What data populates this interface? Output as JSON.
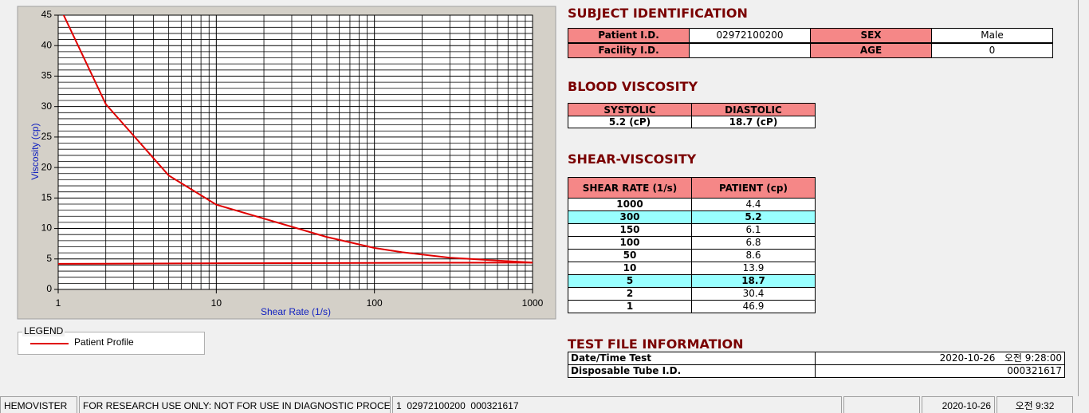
{
  "chart_data": {
    "type": "line",
    "xlabel": "Shear Rate (1/s)",
    "ylabel": "Viscosity (cp)",
    "xscale": "log",
    "xlim": [
      1,
      1000
    ],
    "ylim": [
      0,
      45
    ],
    "xticks": [
      1,
      10,
      100,
      1000
    ],
    "yticks": [
      0,
      5,
      10,
      15,
      20,
      25,
      30,
      35,
      40,
      45
    ],
    "x_minor_ticks": [
      2,
      3,
      4,
      5,
      6,
      7,
      8,
      9,
      20,
      30,
      40,
      50,
      60,
      70,
      80,
      90,
      200,
      300,
      400,
      500,
      600,
      700,
      800,
      900
    ],
    "y_minor_ticks": [
      1,
      2,
      3,
      4,
      6,
      7,
      8,
      9,
      11,
      12,
      13,
      14,
      16,
      17,
      18,
      19,
      21,
      22,
      23,
      24,
      26,
      27,
      28,
      29,
      31,
      32,
      33,
      34,
      36,
      37,
      38,
      39,
      41,
      42,
      43,
      44
    ],
    "grid": true,
    "series": [
      {
        "name": "Patient Profile",
        "color": "#e00000",
        "x": [
          1,
          2,
          5,
          10,
          50,
          100,
          150,
          300,
          1000
        ],
        "values": [
          46.9,
          30.4,
          18.7,
          13.9,
          8.6,
          6.8,
          6.1,
          5.2,
          4.4
        ]
      },
      {
        "color": "#e00000",
        "x": [
          1,
          12,
          1000
        ],
        "values": [
          4.2,
          4.3,
          4.4
        ]
      }
    ]
  },
  "legend": {
    "title": "LEGEND"
  },
  "subject": {
    "title": "SUBJECT IDENTIFICATION",
    "fields": [
      {
        "label": "Patient I.D.",
        "value": "02972100200"
      },
      {
        "label": "SEX",
        "value": "Male"
      },
      {
        "label": "Facility I.D."
      },
      {
        "label": "AGE",
        "value": 0
      }
    ]
  },
  "blood": {
    "title": "BLOOD VISCOSITY",
    "headers": [
      "SYSTOLIC",
      "DIASTOLIC"
    ],
    "values": [
      "5.2 (cP)",
      "18.7 (cP)"
    ]
  },
  "shear": {
    "title": "SHEAR-VISCOSITY",
    "headers": [
      "SHEAR RATE (1/s)",
      "PATIENT (cp)"
    ],
    "rows": [
      {
        "rate": 1000,
        "patient": 4.4
      },
      {
        "rate": 300,
        "patient": 5.2,
        "highlight": true
      },
      {
        "rate": 150,
        "patient": 6.1
      },
      {
        "rate": 100,
        "patient": 6.8
      },
      {
        "rate": 50,
        "patient": 8.6
      },
      {
        "rate": 10,
        "patient": 13.9
      },
      {
        "rate": 5,
        "patient": 18.7,
        "highlight": true
      },
      {
        "rate": 2,
        "patient": 30.4
      },
      {
        "rate": 1,
        "patient": 46.9
      }
    ]
  },
  "test_file": {
    "title": "TEST FILE INFORMATION",
    "rows": [
      {
        "label": "Date/Time Test",
        "value": "2020-10-26   오전 9:28:00"
      },
      {
        "label": "Disposable Tube I.D.",
        "value": "000321617"
      }
    ]
  },
  "status_bar": [
    "HEMOVISTER",
    "FOR RESEARCH USE ONLY: NOT FOR USE IN DIAGNOSTIC PROCEDURES",
    "1  02972100200  000321617",
    "2020-10-26",
    "오전 9:32"
  ]
}
